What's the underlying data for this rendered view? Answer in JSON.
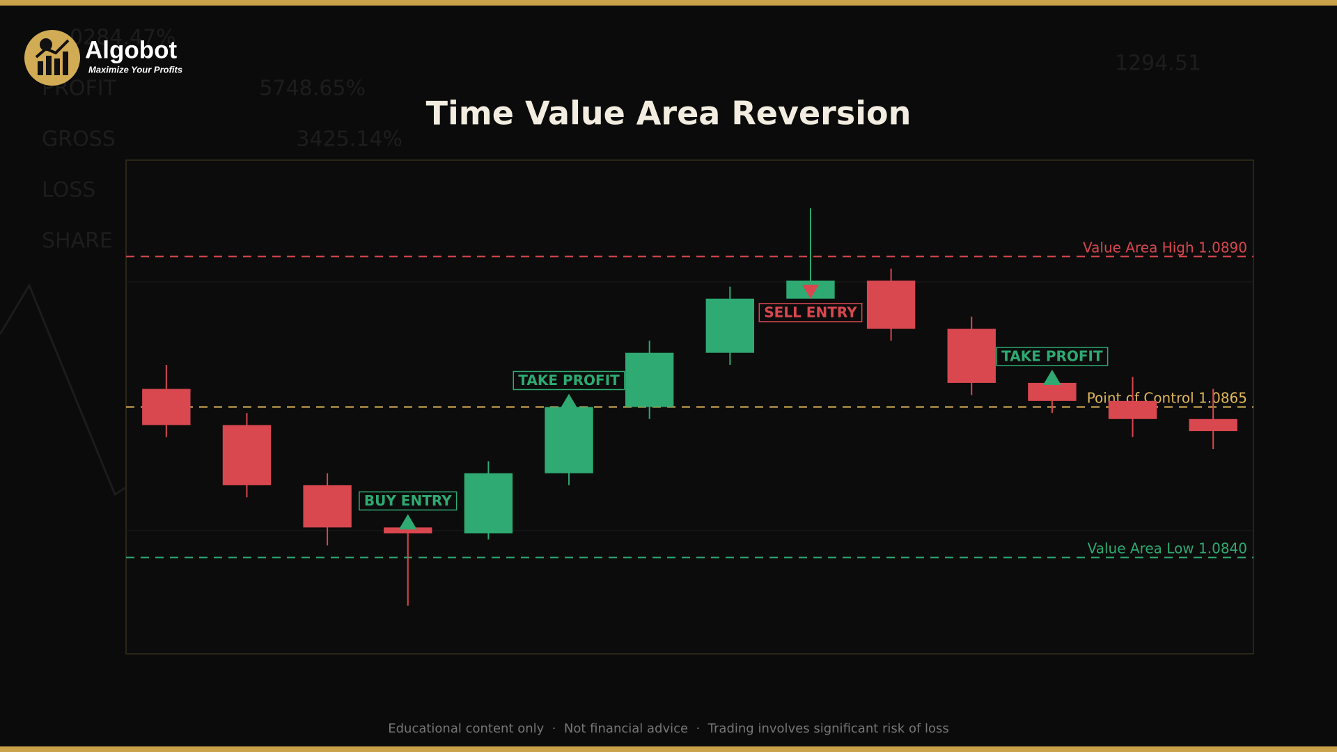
{
  "brand": {
    "name": "Algobot",
    "tagline": "Maximize Your Profits"
  },
  "background_text": [
    "0284.47%",
    "PROFIT",
    "5748.65%",
    "GROSS",
    "3425.14%",
    "LOSS",
    "SHARE",
    "1294.51"
  ],
  "footer": "Educational content only  ·  Not financial advice  ·  Trading involves significant risk of loss",
  "chart_data": {
    "type": "candlestick",
    "title": "Time Value Area Reversion",
    "up_color": "#2eaa72",
    "down_color": "#d9474f",
    "ylim": [
      1.0824,
      1.0906
    ],
    "open": [
      1.0868,
      1.0862,
      1.0852,
      1.0845,
      1.0844,
      1.0854,
      1.0865,
      1.0874,
      1.0883,
      1.0886,
      1.0878,
      1.0869,
      1.0866,
      1.0863
    ],
    "high": [
      1.0872,
      1.0864,
      1.0854,
      1.0845,
      1.0856,
      1.0866,
      1.0876,
      1.0885,
      1.0898,
      1.0888,
      1.088,
      1.0869,
      1.087,
      1.0868
    ],
    "low": [
      1.086,
      1.085,
      1.0842,
      1.0832,
      1.0843,
      1.0852,
      1.0863,
      1.0872,
      1.0883,
      1.0876,
      1.0867,
      1.0864,
      1.086,
      1.0858
    ],
    "close": [
      1.0862,
      1.0852,
      1.0845,
      1.0844,
      1.0854,
      1.0865,
      1.0874,
      1.0883,
      1.0886,
      1.0878,
      1.0869,
      1.0866,
      1.0863,
      1.0861
    ],
    "levels": [
      {
        "name": "Value Area High",
        "value": 1.089,
        "value_label": "1.0890",
        "color": "#d9474f"
      },
      {
        "name": "Point of Control",
        "value": 1.0865,
        "value_label": "1.0865",
        "color": "#e0b85a"
      },
      {
        "name": "Value Area Low",
        "value": 1.084,
        "value_label": "1.0840",
        "color": "#2eaa72"
      }
    ],
    "annotations": [
      {
        "text": "BUY ENTRY",
        "index": 3,
        "direction": "up"
      },
      {
        "text": "TAKE PROFIT",
        "index": 5,
        "direction": "up"
      },
      {
        "text": "SELL ENTRY",
        "index": 8,
        "direction": "down"
      },
      {
        "text": "TAKE PROFIT",
        "index": 11,
        "direction": "up"
      }
    ]
  }
}
